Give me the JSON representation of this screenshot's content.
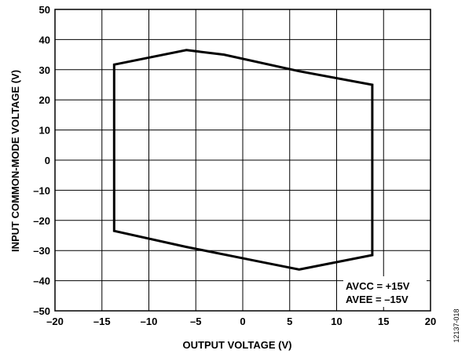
{
  "chart_data": {
    "type": "line",
    "xlabel": "OUTPUT VOLTAGE (V)",
    "ylabel": "INPUT COMMON-MODE VOLTAGE (V)",
    "xlim": [
      -20,
      20
    ],
    "ylim": [
      -50,
      50
    ],
    "x_ticks": [
      -20,
      -15,
      -10,
      -5,
      0,
      5,
      10,
      15,
      20
    ],
    "y_ticks": [
      50,
      40,
      30,
      20,
      10,
      0,
      -10,
      -20,
      -30,
      -40,
      -50
    ],
    "x_tick_labels": [
      "–20",
      "–15",
      "–10",
      "–5",
      "0",
      "5",
      "10",
      "15",
      "20"
    ],
    "y_tick_labels": [
      "50",
      "40",
      "30",
      "20",
      "10",
      "0",
      "–10",
      "–20",
      "–30",
      "–40",
      "–50"
    ],
    "grid": true,
    "series": [
      {
        "closed": true,
        "points": [
          [
            -13.7,
            31.7
          ],
          [
            -6.0,
            36.5
          ],
          [
            -2.0,
            35.0
          ],
          [
            6.0,
            29.5
          ],
          [
            13.8,
            25.0
          ],
          [
            13.8,
            -31.5
          ],
          [
            6.0,
            -36.3
          ],
          [
            2.0,
            -33.8
          ],
          [
            -6.0,
            -28.8
          ],
          [
            -13.7,
            -23.5
          ]
        ]
      }
    ],
    "annotations": [
      "AVCC = +15V",
      "AVEE = –15V"
    ],
    "figure_id": "12137-018"
  }
}
